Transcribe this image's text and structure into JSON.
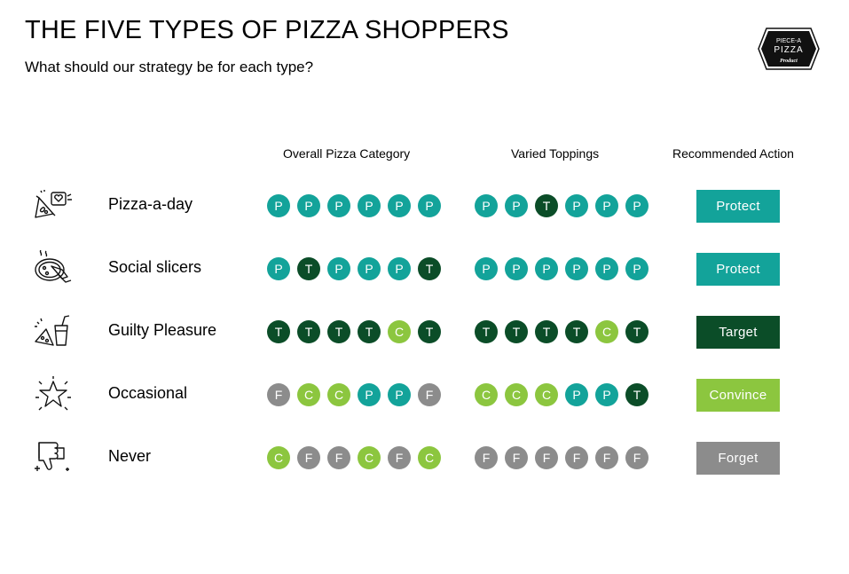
{
  "header": {
    "title": "THE FIVE TYPES OF PIZZA SHOPPERS",
    "subtitle": "What should our strategy be for each type?"
  },
  "logo": {
    "line1": "PIECE-A",
    "line2": "PIZZA",
    "line3": "Product"
  },
  "columns": {
    "overall": "Overall Pizza Category",
    "toppings": "Varied Toppings",
    "action": "Recommended Action"
  },
  "colors": {
    "P": "#13a39a",
    "T": "#0b4d28",
    "C": "#8cc63f",
    "F": "#8c8c8c"
  },
  "action_colors": {
    "Protect": "#13a39a",
    "Target": "#0b4d28",
    "Convince": "#8cc63f",
    "Forget": "#8c8c8c"
  },
  "rows": [
    {
      "label": "Pizza-a-day",
      "icon": "pizza-love-icon",
      "overall": [
        "P",
        "P",
        "P",
        "P",
        "P",
        "P"
      ],
      "toppings": [
        "P",
        "P",
        "T",
        "P",
        "P",
        "P"
      ],
      "action": "Protect"
    },
    {
      "label": "Social slicers",
      "icon": "shared-pizza-icon",
      "overall": [
        "P",
        "T",
        "P",
        "P",
        "P",
        "T"
      ],
      "toppings": [
        "P",
        "P",
        "P",
        "P",
        "P",
        "P"
      ],
      "action": "Protect"
    },
    {
      "label": "Guilty Pleasure",
      "icon": "pizza-soda-icon",
      "overall": [
        "T",
        "T",
        "T",
        "T",
        "C",
        "T"
      ],
      "toppings": [
        "T",
        "T",
        "T",
        "T",
        "C",
        "T"
      ],
      "action": "Target"
    },
    {
      "label": "Occasional",
      "icon": "star-icon",
      "overall": [
        "F",
        "C",
        "C",
        "P",
        "P",
        "F"
      ],
      "toppings": [
        "C",
        "C",
        "C",
        "P",
        "P",
        "T"
      ],
      "action": "Convince"
    },
    {
      "label": "Never",
      "icon": "thumbs-down-icon",
      "overall": [
        "C",
        "F",
        "F",
        "C",
        "F",
        "C"
      ],
      "toppings": [
        "F",
        "F",
        "F",
        "F",
        "F",
        "F"
      ],
      "action": "Forget"
    }
  ]
}
